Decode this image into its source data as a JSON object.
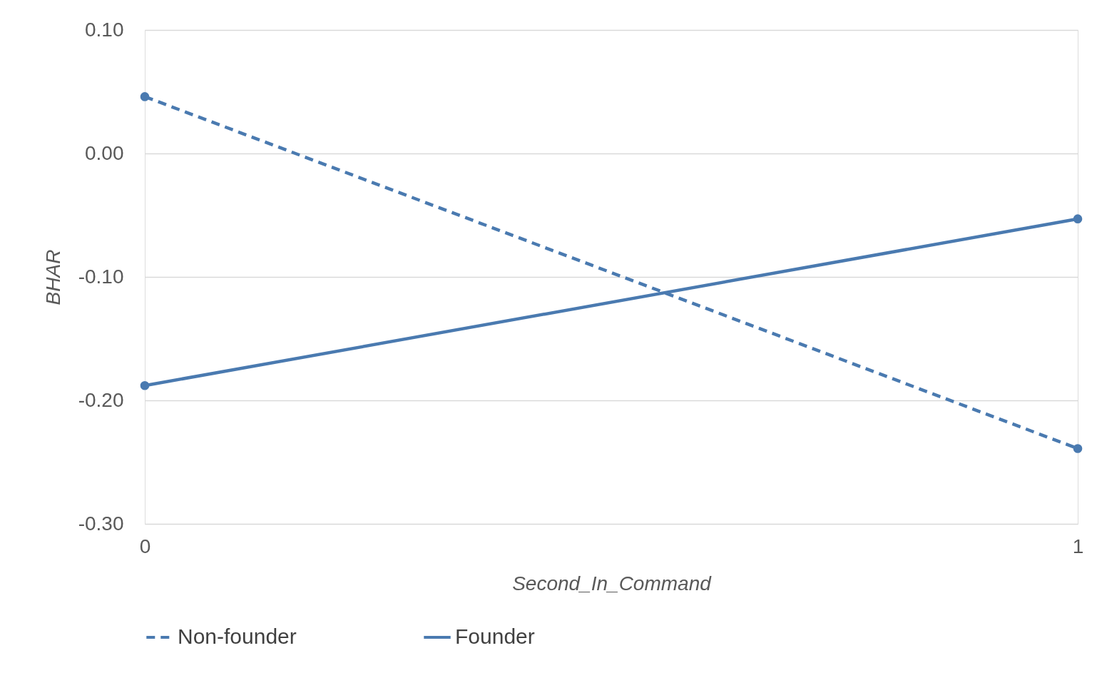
{
  "chart_data": {
    "type": "line",
    "xlabel": "Second_In_Command",
    "ylabel": "BHAR",
    "x": [
      0,
      1
    ],
    "series": [
      {
        "name": "Non-founder",
        "color": "#4a7ab0",
        "values": [
          0.046,
          -0.239
        ],
        "line_style": "dashed"
      },
      {
        "name": "Founder",
        "color": "#4a7ab0",
        "values": [
          -0.188,
          -0.053
        ],
        "line_style": "solid"
      }
    ],
    "xlim": [
      0,
      1
    ],
    "xticks": [
      0,
      1
    ],
    "ylim": [
      -0.3,
      0.1
    ],
    "yticks": [
      {
        "value": -0.3,
        "label": "-0.30"
      },
      {
        "value": -0.2,
        "label": "-0.20"
      },
      {
        "value": -0.1,
        "label": "-0.10"
      },
      {
        "value": 0,
        "label": "0.00"
      },
      {
        "value": 0.1,
        "label": "0.10"
      }
    ],
    "grid": "y",
    "legend": "bottom",
    "marker": "circle"
  }
}
